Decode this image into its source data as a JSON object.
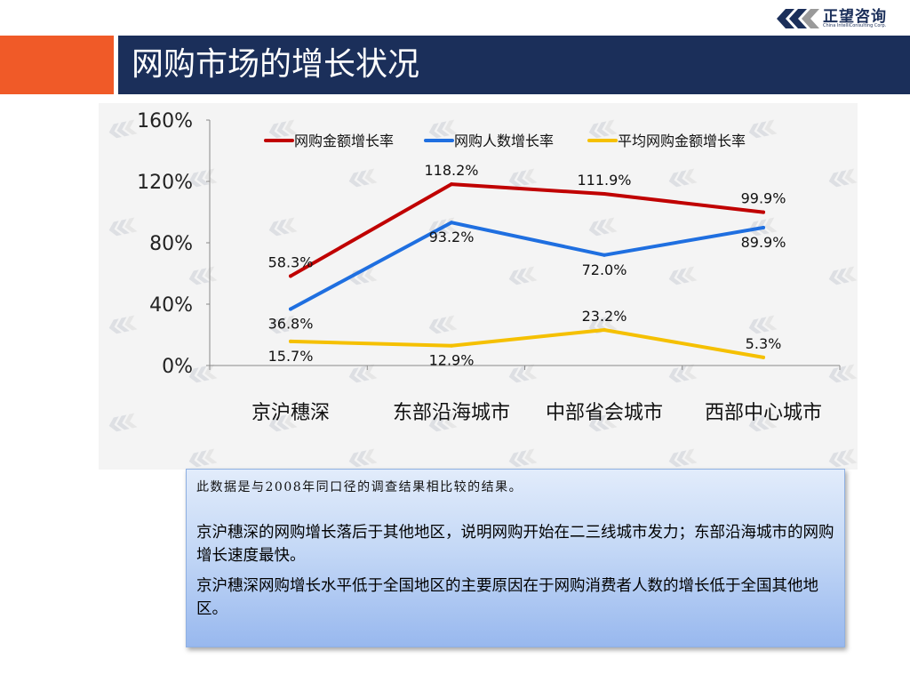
{
  "header": {
    "title": "网购市场的增长状况",
    "logo_text": "正望咨询",
    "logo_subtext": "China IntelliConsulting Corp."
  },
  "colors": {
    "title_bar": "#1b2f5a",
    "title_accent": "#f05a28",
    "series_red": "#c00000",
    "series_blue": "#1f6fe0",
    "series_yellow": "#f5c000"
  },
  "chart_data": {
    "type": "line",
    "categories": [
      "京沪穗深",
      "东部沿海城市",
      "中部省会城市",
      "西部中心城市"
    ],
    "y_tick_labels": [
      "0%",
      "40%",
      "80%",
      "120%",
      "160%"
    ],
    "ylim": [
      0,
      160
    ],
    "grid": false,
    "legend_position": "top",
    "series": [
      {
        "name": "网购金额增长率",
        "color": "#c00000",
        "values": [
          58.3,
          118.2,
          111.9,
          99.9
        ],
        "labels": [
          "58.3%",
          "118.2%",
          "111.9%",
          "99.9%"
        ],
        "label_side": [
          "above",
          "above",
          "above",
          "above"
        ]
      },
      {
        "name": "网购人数增长率",
        "color": "#1f6fe0",
        "values": [
          36.8,
          93.2,
          72.0,
          89.9
        ],
        "labels": [
          "36.8%",
          "93.2%",
          "72.0%",
          "89.9%"
        ],
        "label_side": [
          "below",
          "below",
          "below",
          "below"
        ]
      },
      {
        "name": "平均网购金额增长率",
        "color": "#f5c000",
        "values": [
          15.7,
          12.9,
          23.2,
          5.3
        ],
        "labels": [
          "15.7%",
          "12.9%",
          "23.2%",
          "5.3%"
        ],
        "label_side": [
          "below",
          "below",
          "above",
          "above"
        ]
      }
    ]
  },
  "notes": {
    "source": "此数据是与2008年同口径的调查结果相比较的结果。",
    "paragraph1": "京沪穗深的网购增长落后于其他地区，说明网购开始在二三线城市发力；东部沿海城市的网购增长速度最快。",
    "paragraph2": "京沪穗深网购增长水平低于全国地区的主要原因在于网购消费者人数的增长低于全国其他地区。"
  }
}
